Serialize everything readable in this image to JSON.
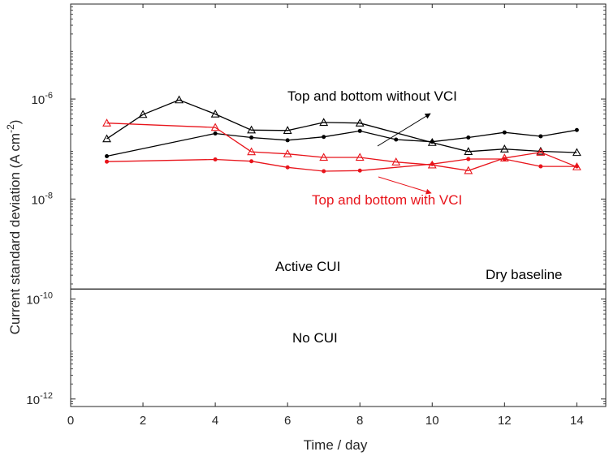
{
  "chart_data": {
    "type": "line",
    "title": "",
    "xlabel": "Time / day",
    "ylabel": "Current standard deviation (A cm",
    "ylabel_sup": "-2",
    "ylabel_end": ")",
    "xlim": [
      0,
      14.8
    ],
    "ylim_log10": [
      -12.15,
      -4.1
    ],
    "yscale": "log",
    "x_ticks": [
      0,
      2,
      4,
      6,
      8,
      10,
      12,
      14
    ],
    "x_tick_labels": [
      "0",
      "2",
      "4",
      "6",
      "8",
      "10",
      "12",
      "14"
    ],
    "y_ticks": [
      {
        "exp": -6,
        "base": "10",
        "sup": "-6"
      },
      {
        "exp": -8,
        "base": "10",
        "sup": "-8"
      },
      {
        "exp": -10,
        "base": "10",
        "sup": "-10"
      },
      {
        "exp": -12,
        "base": "10",
        "sup": "-12"
      }
    ],
    "threshold": {
      "value_log10": -9.8
    },
    "series": [
      {
        "name": "Top without VCI",
        "color": "#000000",
        "marker": "triangle",
        "x": [
          1,
          2,
          3,
          4,
          5,
          6,
          7,
          8,
          10,
          11,
          12,
          13,
          14
        ],
        "y": [
          1.6e-07,
          4.9e-07,
          9.6e-07,
          5e-07,
          2.4e-07,
          2.35e-07,
          3.4e-07,
          3.3e-07,
          1.35e-07,
          8.9e-08,
          1e-07,
          9e-08,
          8.5e-08
        ]
      },
      {
        "name": "Bottom without VCI",
        "color": "#000000",
        "marker": "dot",
        "x": [
          1,
          4,
          5,
          6,
          7,
          8,
          9,
          10,
          11,
          12,
          13,
          14
        ],
        "y": [
          7.2e-08,
          2.05e-07,
          1.7e-07,
          1.5e-07,
          1.75e-07,
          2.3e-07,
          1.55e-07,
          1.4e-07,
          1.7e-07,
          2.15e-07,
          1.8e-07,
          2.4e-07
        ]
      },
      {
        "name": "Top with VCI",
        "color": "#e8141b",
        "marker": "triangle",
        "x": [
          1,
          4,
          5,
          6,
          7,
          8,
          9,
          10,
          11,
          12,
          13,
          14
        ],
        "y": [
          3.3e-07,
          2.7e-07,
          8.8e-08,
          8e-08,
          6.8e-08,
          6.8e-08,
          5.5e-08,
          4.8e-08,
          3.7e-08,
          6.6e-08,
          8.6e-08,
          4.4e-08
        ]
      },
      {
        "name": "Bottom with VCI",
        "color": "#e8141b",
        "marker": "dot",
        "x": [
          1,
          4,
          5,
          6,
          7,
          8,
          10,
          11,
          12,
          13,
          14
        ],
        "y": [
          5.6e-08,
          6.2e-08,
          5.7e-08,
          4.3e-08,
          3.6e-08,
          3.7e-08,
          5e-08,
          6.3e-08,
          6.3e-08,
          4.5e-08,
          4.5e-08
        ]
      }
    ],
    "annotations": [
      {
        "id": "without",
        "text": "Top and bottom without VCI",
        "color": "#000000"
      },
      {
        "id": "with",
        "text": "Top and bottom with VCI",
        "color": "#e8141b"
      },
      {
        "id": "active",
        "text": "Active CUI",
        "color": "#000000"
      },
      {
        "id": "dry",
        "text": "Dry baseline",
        "color": "#000000"
      },
      {
        "id": "nocui",
        "text": "No CUI",
        "color": "#000000"
      }
    ]
  }
}
